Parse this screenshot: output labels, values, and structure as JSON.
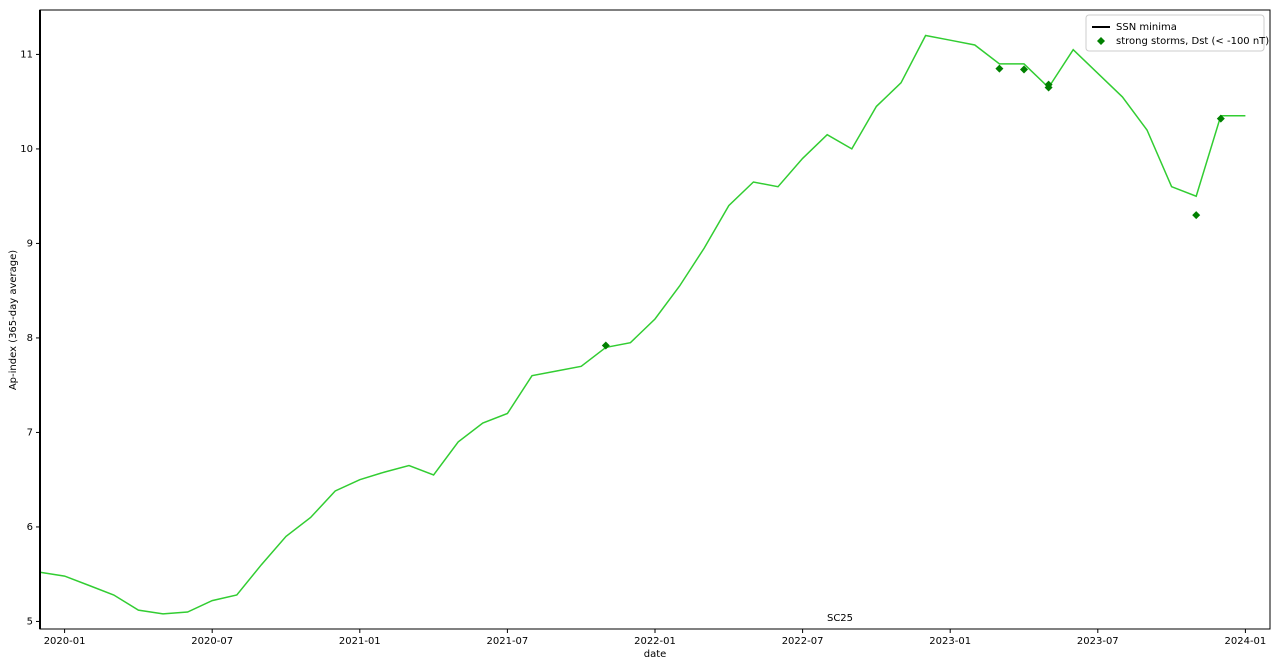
{
  "chart_data": {
    "type": "line",
    "x_label": "date",
    "y_label": "Ap-index (365-day average)",
    "x": [
      "2019-12",
      "2020-01",
      "2020-02",
      "2020-03",
      "2020-04",
      "2020-05",
      "2020-06",
      "2020-07",
      "2020-08",
      "2020-09",
      "2020-10",
      "2020-11",
      "2020-12",
      "2021-01",
      "2021-02",
      "2021-03",
      "2021-04",
      "2021-05",
      "2021-06",
      "2021-07",
      "2021-08",
      "2021-09",
      "2021-10",
      "2021-11",
      "2021-12",
      "2022-01",
      "2022-02",
      "2022-03",
      "2022-04",
      "2022-05",
      "2022-06",
      "2022-07",
      "2022-08",
      "2022-09",
      "2022-10",
      "2022-11",
      "2022-12",
      "2023-01",
      "2023-02",
      "2023-03",
      "2023-04",
      "2023-05",
      "2023-06",
      "2023-07",
      "2023-08",
      "2023-09",
      "2023-10",
      "2023-11",
      "2023-12",
      "2024-01"
    ],
    "series": [
      {
        "color": "#32cd32",
        "values": [
          5.52,
          5.48,
          5.38,
          5.28,
          5.12,
          5.08,
          5.1,
          5.22,
          5.28,
          5.6,
          5.9,
          6.1,
          6.38,
          6.5,
          6.58,
          6.65,
          6.55,
          6.9,
          7.1,
          7.2,
          7.6,
          7.65,
          7.7,
          7.9,
          7.95,
          8.2,
          8.55,
          8.95,
          9.4,
          9.65,
          9.6,
          9.9,
          10.15,
          10.0,
          10.45,
          10.7,
          11.2,
          11.15,
          11.1,
          10.9,
          10.9,
          10.65,
          11.05,
          10.8,
          10.55,
          10.2,
          9.6,
          9.5,
          10.35,
          10.35
        ]
      }
    ],
    "vlines": [
      {
        "name": "SSN minima",
        "x": "2019-12",
        "color": "#000000"
      }
    ],
    "markers": {
      "name": "strong storms, Dst (< -100 nT)",
      "color": "#008000",
      "x": [
        "2021-11",
        "2023-03",
        "2023-04",
        "2023-05",
        "2023-05",
        "2023-11",
        "2023-12"
      ],
      "values": [
        7.92,
        10.85,
        10.84,
        10.68,
        10.65,
        9.3,
        10.32
      ]
    },
    "annotation": "SC25",
    "xlim": [
      "2019-12",
      "2024-02"
    ],
    "xticks": [
      "2020-01",
      "2020-07",
      "2021-01",
      "2021-07",
      "2022-01",
      "2022-07",
      "2023-01",
      "2023-07",
      "2024-01"
    ],
    "ylim": [
      4.92,
      11.47
    ],
    "yticks": [
      5,
      6,
      7,
      8,
      9,
      10,
      11
    ],
    "legend": "upper-right"
  }
}
